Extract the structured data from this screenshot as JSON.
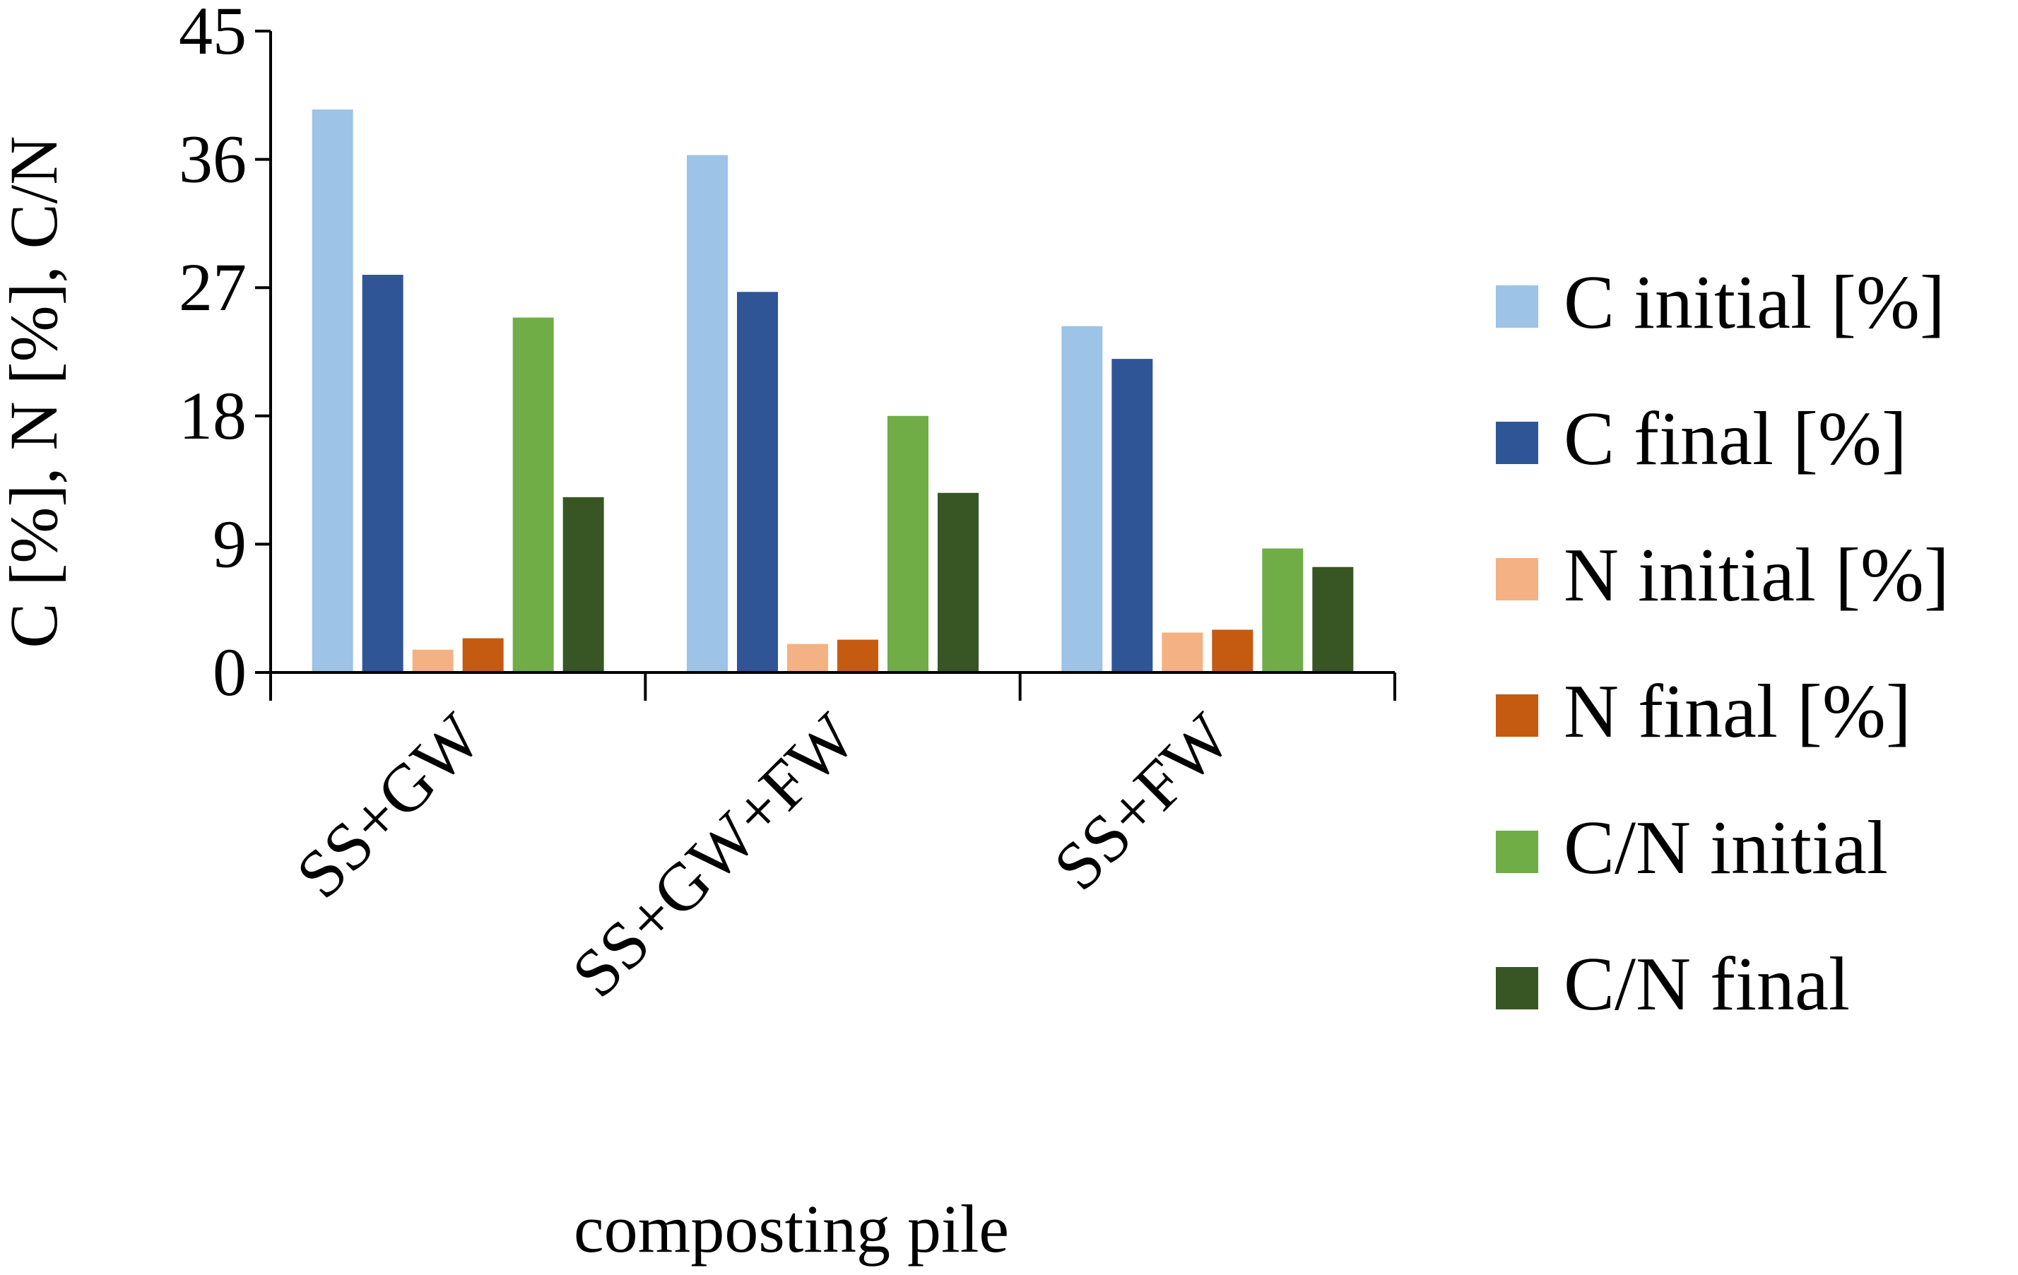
{
  "chart_data": {
    "type": "bar",
    "title": "",
    "xlabel": "composting pile",
    "ylabel": "C [%], N [%], C/N",
    "ylim": [
      0,
      45
    ],
    "yticks": [
      0,
      9,
      18,
      27,
      36,
      45
    ],
    "categories": [
      "SS+GW",
      "SS+GW+FW",
      "SS+FW"
    ],
    "series": [
      {
        "name": "C initial [%]",
        "color": "#9dc3e6",
        "values": [
          39.5,
          36.3,
          24.3
        ]
      },
      {
        "name": "C final [%]",
        "color": "#2f5597",
        "values": [
          27.9,
          26.7,
          22.0
        ]
      },
      {
        "name": "N initial [%]",
        "color": "#f4b183",
        "values": [
          1.6,
          2.0,
          2.8
        ]
      },
      {
        "name": "N final [%]",
        "color": "#c55a11",
        "values": [
          2.4,
          2.3,
          3.0
        ]
      },
      {
        "name": "C/N initial",
        "color": "#70ad47",
        "values": [
          24.9,
          18.0,
          8.7
        ]
      },
      {
        "name": "C/N final",
        "color": "#375623",
        "values": [
          12.3,
          12.6,
          7.4
        ]
      }
    ],
    "legend_position": "right",
    "grid": false
  }
}
